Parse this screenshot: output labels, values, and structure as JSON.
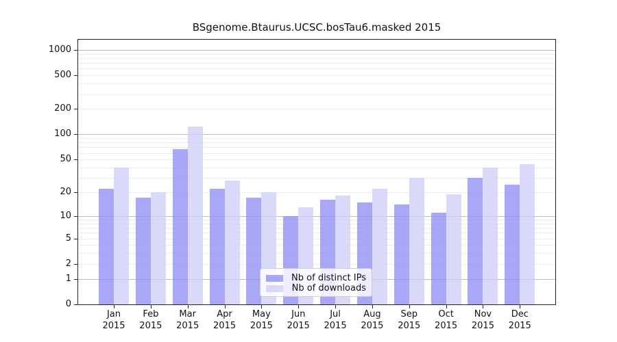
{
  "chart_data": {
    "type": "bar",
    "title": "BSgenome.Btaurus.UCSC.bosTau6.masked 2015",
    "y_scale": "log10(1+x)",
    "ylim": [
      0,
      1320
    ],
    "grid": true,
    "legend_position": "lower-center",
    "categories": [
      "Jan",
      "Feb",
      "Mar",
      "Apr",
      "May",
      "Jun",
      "Jul",
      "Aug",
      "Sep",
      "Oct",
      "Nov",
      "Dec"
    ],
    "category_year": "2015",
    "y_ticks": [
      0,
      1,
      2,
      5,
      10,
      20,
      50,
      100,
      200,
      500,
      1000
    ],
    "series": [
      {
        "name": "Nb of distinct IPs",
        "color": "#8b8bf4",
        "alpha": 0.75,
        "displayed_color_on_white": "#a8a8f8",
        "values": [
          22,
          17,
          67,
          22,
          17,
          10,
          16,
          15,
          14,
          11,
          30,
          25
        ]
      },
      {
        "name": "Nb of downloads",
        "color": "#ccccf7",
        "alpha": 0.75,
        "displayed_color_on_white": "#d8d8f8",
        "values": [
          40,
          20,
          125,
          28,
          20,
          13,
          18,
          22,
          30,
          19,
          40,
          44
        ]
      }
    ]
  },
  "colors": {
    "major_gridline": "#bbbbbb",
    "minor_gridline": "#ebebeb",
    "axis_frame": "#222222",
    "background": "#ffffff",
    "text": "#111111"
  }
}
